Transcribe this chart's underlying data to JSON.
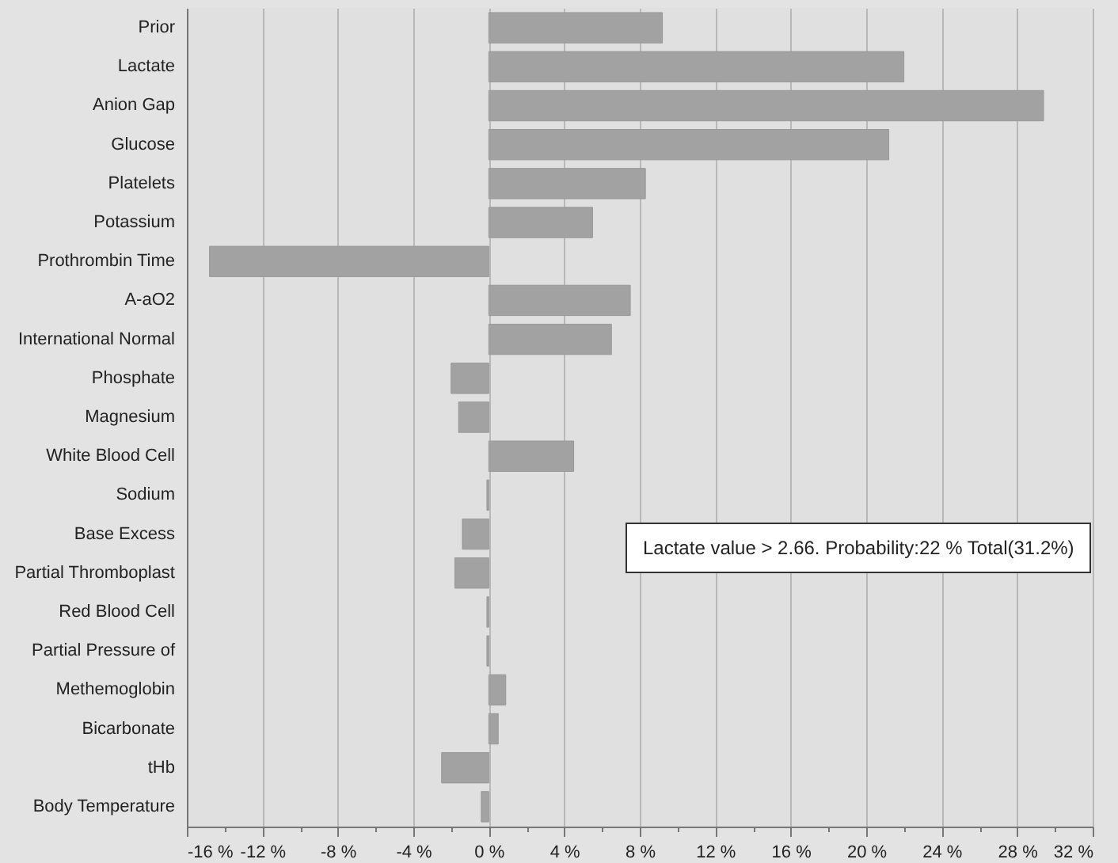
{
  "chart_data": {
    "type": "bar",
    "orientation": "horizontal",
    "categories": [
      "Prior",
      "Lactate",
      "Anion Gap",
      "Glucose",
      "Platelets",
      "Potassium",
      "Prothrombin Time",
      "A-aO2",
      "International Normal",
      "Phosphate",
      "Magnesium",
      "White Blood Cell",
      "Sodium",
      "Base Excess",
      "Partial Thromboplast",
      "Red Blood Cell",
      "Partial Pressure of",
      "Methemoglobin",
      "Bicarbonate",
      "tHb",
      "Body Temperature"
    ],
    "values": [
      9.2,
      22,
      29.4,
      21.2,
      8.3,
      5.5,
      -14.8,
      7.5,
      6.5,
      -2.0,
      -1.6,
      4.5,
      -0.1,
      -1.4,
      -1.8,
      -0.1,
      -0.1,
      0.9,
      0.5,
      -2.5,
      -0.4
    ],
    "color": "#a2a2a2",
    "xlim": [
      -16,
      32
    ],
    "xticks": [
      {
        "value": -16,
        "label": "-16 %"
      },
      {
        "value": -14,
        "label": null
      },
      {
        "value": -12,
        "label": "-12 %"
      },
      {
        "value": -10,
        "label": null
      },
      {
        "value": -8,
        "label": "-8 %"
      },
      {
        "value": -6,
        "label": null
      },
      {
        "value": -4,
        "label": "-4 %"
      },
      {
        "value": -2,
        "label": null
      },
      {
        "value": 0,
        "label": "0 %"
      },
      {
        "value": 2,
        "label": null
      },
      {
        "value": 4,
        "label": "4 %"
      },
      {
        "value": 6,
        "label": null
      },
      {
        "value": 8,
        "label": "8 %"
      },
      {
        "value": 10,
        "label": null
      },
      {
        "value": 12,
        "label": "12 %"
      },
      {
        "value": 14,
        "label": null
      },
      {
        "value": 16,
        "label": "16 %"
      },
      {
        "value": 18,
        "label": null
      },
      {
        "value": 20,
        "label": "20 %"
      },
      {
        "value": 22,
        "label": null
      },
      {
        "value": 24,
        "label": "24 %"
      },
      {
        "value": 26,
        "label": null
      },
      {
        "value": 28,
        "label": "28 %"
      },
      {
        "value": 30,
        "label": null
      },
      {
        "value": 32,
        "label": "32 %"
      }
    ],
    "grid": "x",
    "annotations": [
      "Lactate value > 2.66. Probability:22 % Total(31.2%)"
    ]
  }
}
